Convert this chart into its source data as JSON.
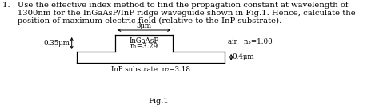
{
  "fig_label": "Fig.1",
  "ridge_label": "InGaAsP",
  "ridge_n_label": "n₁=3.29",
  "substrate_label": "InP substrate  n₂=3.18",
  "air_label": "air   n₃=1.00",
  "width_label": "3μm",
  "height_left_label": "0.35μm",
  "height_right_label": "0.4μm",
  "bg_color": "#ffffff",
  "text_color": "#000000",
  "font_size_body": 7.2,
  "font_size_small": 6.2,
  "font_size_fig": 7.0,
  "line1": "1.   Use the effective index method to find the propagation constant at wavelength of",
  "line2": "      1300nm for the InGaAsP/InP ridge waveguide shown in Fig.1. Hence, calculate the",
  "line3": "      position of maximum electric field (relative to the InP substrate)."
}
